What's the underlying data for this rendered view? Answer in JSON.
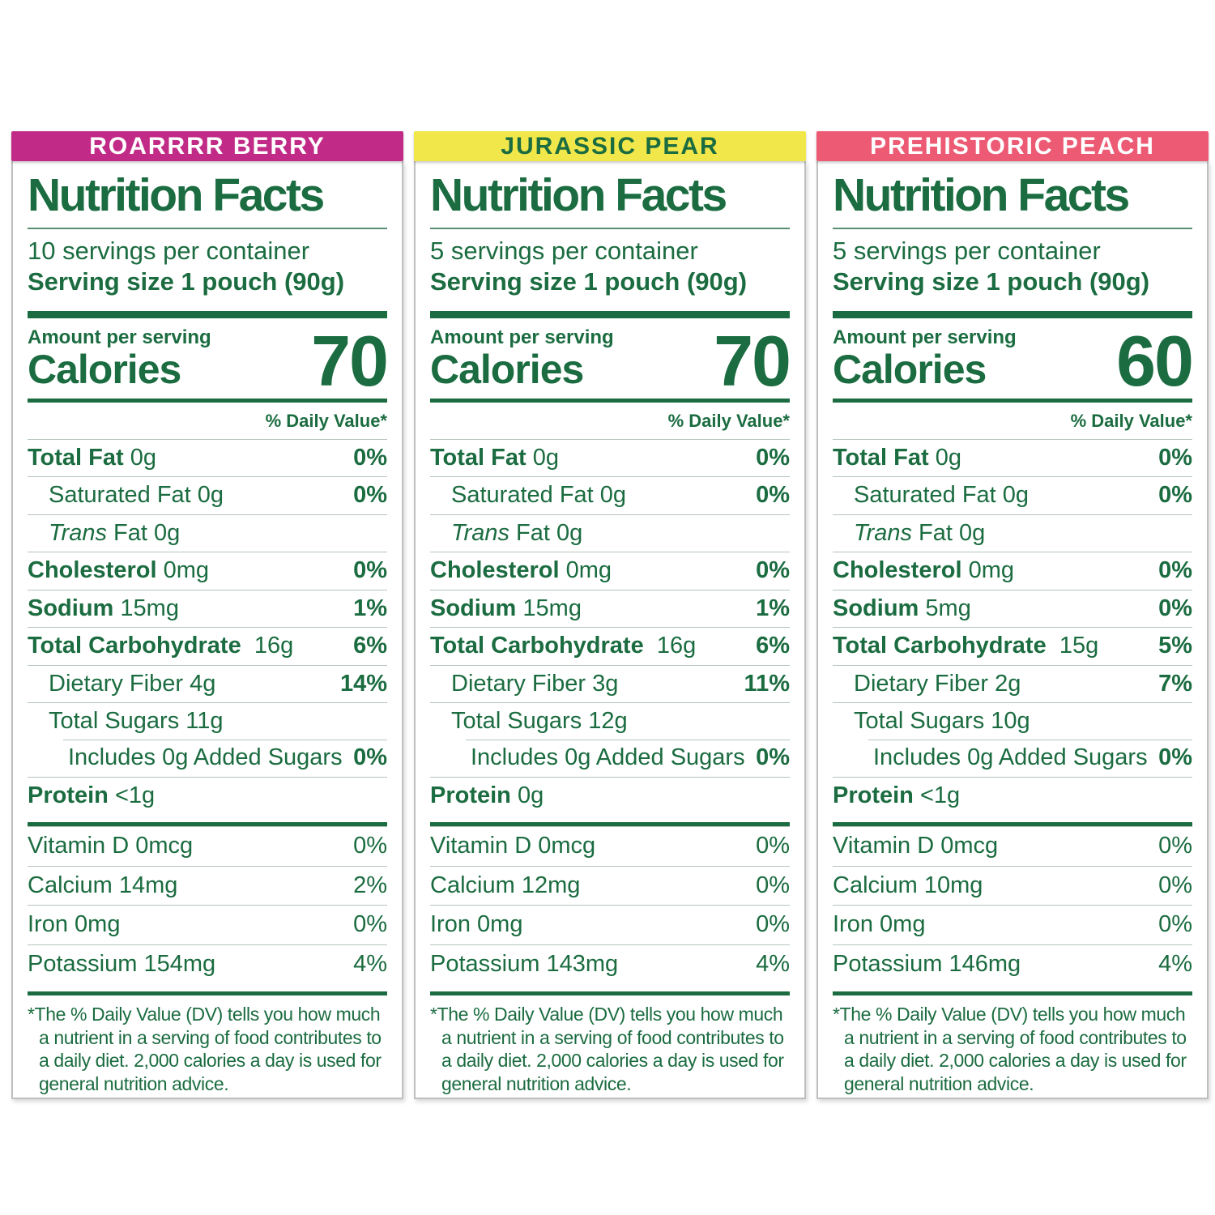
{
  "colors": {
    "label_green": "#1B6C40",
    "hairline": "#b5c6ba",
    "panel_border": "#bfbfbf",
    "berry_header": "#C12B87",
    "pear_header": "#F1E74A",
    "peach_header": "#EC5A74"
  },
  "panels": [
    {
      "flavor": "ROARRRR BERRY",
      "header_bg": "#C12B87",
      "header_text": "#FFFFFF",
      "title": "Nutrition Facts",
      "servings": "10 servings per container",
      "serving_size": "Serving size 1 pouch (90g)",
      "amount_per_serving": "Amount per serving",
      "calories_label": "Calories",
      "calories": "70",
      "dv_header": "% Daily Value*",
      "total_fat_label": "Total Fat",
      "total_fat_amount": "0g",
      "total_fat_dv": "0%",
      "sat_fat_label": "Saturated Fat",
      "sat_fat_amount": "0g",
      "sat_fat_dv": "0%",
      "trans_fat_italic": "Trans",
      "trans_fat_rest": "Fat",
      "trans_fat_amount": "0g",
      "cholesterol_label": "Cholesterol",
      "cholesterol_amount": "0mg",
      "cholesterol_dv": "0%",
      "sodium_label": "Sodium",
      "sodium_amount": "15mg",
      "sodium_dv": "1%",
      "carb_label": "Total Carbohydrate",
      "carb_amount": "16g",
      "carb_dv": "6%",
      "fiber_label": "Dietary Fiber",
      "fiber_amount": "4g",
      "fiber_dv": "14%",
      "sugars_label": "Total Sugars",
      "sugars_amount": "11g",
      "added_sugars_label": "Includes 0g Added Sugars",
      "added_sugars_dv": "0%",
      "protein_label": "Protein",
      "protein_amount": "<1g",
      "vitd_label": "Vitamin D",
      "vitd_amount": "0mcg",
      "vitd_dv": "0%",
      "calcium_label": "Calcium",
      "calcium_amount": "14mg",
      "calcium_dv": "2%",
      "iron_label": "Iron",
      "iron_amount": "0mg",
      "iron_dv": "0%",
      "potassium_label": "Potassium",
      "potassium_amount": "154mg",
      "potassium_dv": "4%",
      "footnote": "*The % Daily Value (DV) tells you how much a nutrient in a serving of food contributes to a daily diet. 2,000 calories a day is used for general nutrition advice."
    },
    {
      "flavor": "JURASSIC PEAR",
      "header_bg": "#F1E74A",
      "header_text": "#1B6C40",
      "title": "Nutrition Facts",
      "servings": "5 servings per container",
      "serving_size": "Serving size 1 pouch (90g)",
      "amount_per_serving": "Amount per serving",
      "calories_label": "Calories",
      "calories": "70",
      "dv_header": "% Daily Value*",
      "total_fat_label": "Total Fat",
      "total_fat_amount": "0g",
      "total_fat_dv": "0%",
      "sat_fat_label": "Saturated Fat",
      "sat_fat_amount": "0g",
      "sat_fat_dv": "0%",
      "trans_fat_italic": "Trans",
      "trans_fat_rest": "Fat",
      "trans_fat_amount": "0g",
      "cholesterol_label": "Cholesterol",
      "cholesterol_amount": "0mg",
      "cholesterol_dv": "0%",
      "sodium_label": "Sodium",
      "sodium_amount": "15mg",
      "sodium_dv": "1%",
      "carb_label": "Total Carbohydrate",
      "carb_amount": "16g",
      "carb_dv": "6%",
      "fiber_label": "Dietary Fiber",
      "fiber_amount": "3g",
      "fiber_dv": "11%",
      "sugars_label": "Total Sugars",
      "sugars_amount": "12g",
      "added_sugars_label": "Includes 0g Added Sugars",
      "added_sugars_dv": "0%",
      "protein_label": "Protein",
      "protein_amount": "0g",
      "vitd_label": "Vitamin D",
      "vitd_amount": "0mcg",
      "vitd_dv": "0%",
      "calcium_label": "Calcium",
      "calcium_amount": "12mg",
      "calcium_dv": "0%",
      "iron_label": "Iron",
      "iron_amount": "0mg",
      "iron_dv": "0%",
      "potassium_label": "Potassium",
      "potassium_amount": "143mg",
      "potassium_dv": "4%",
      "footnote": "*The % Daily Value (DV) tells you how much a nutrient in a serving of food contributes to a daily diet. 2,000 calories a day is used for general nutrition advice."
    },
    {
      "flavor": "PREHISTORIC PEACH",
      "header_bg": "#EC5A74",
      "header_text": "#FFFFFF",
      "title": "Nutrition Facts",
      "servings": "5 servings per container",
      "serving_size": "Serving size 1 pouch (90g)",
      "amount_per_serving": "Amount per serving",
      "calories_label": "Calories",
      "calories": "60",
      "dv_header": "% Daily Value*",
      "total_fat_label": "Total Fat",
      "total_fat_amount": "0g",
      "total_fat_dv": "0%",
      "sat_fat_label": "Saturated Fat",
      "sat_fat_amount": "0g",
      "sat_fat_dv": "0%",
      "trans_fat_italic": "Trans",
      "trans_fat_rest": "Fat",
      "trans_fat_amount": "0g",
      "cholesterol_label": "Cholesterol",
      "cholesterol_amount": "0mg",
      "cholesterol_dv": "0%",
      "sodium_label": "Sodium",
      "sodium_amount": "5mg",
      "sodium_dv": "0%",
      "carb_label": "Total Carbohydrate",
      "carb_amount": "15g",
      "carb_dv": "5%",
      "fiber_label": "Dietary Fiber",
      "fiber_amount": "2g",
      "fiber_dv": "7%",
      "sugars_label": "Total Sugars",
      "sugars_amount": "10g",
      "added_sugars_label": "Includes 0g Added Sugars",
      "added_sugars_dv": "0%",
      "protein_label": "Protein",
      "protein_amount": "<1g",
      "vitd_label": "Vitamin D",
      "vitd_amount": "0mcg",
      "vitd_dv": "0%",
      "calcium_label": "Calcium",
      "calcium_amount": "10mg",
      "calcium_dv": "0%",
      "iron_label": "Iron",
      "iron_amount": "0mg",
      "iron_dv": "0%",
      "potassium_label": "Potassium",
      "potassium_amount": "146mg",
      "potassium_dv": "4%",
      "footnote": "*The % Daily Value (DV) tells you how much a nutrient in a serving of food contributes to a daily diet. 2,000 calories a day is used for general nutrition advice."
    }
  ]
}
